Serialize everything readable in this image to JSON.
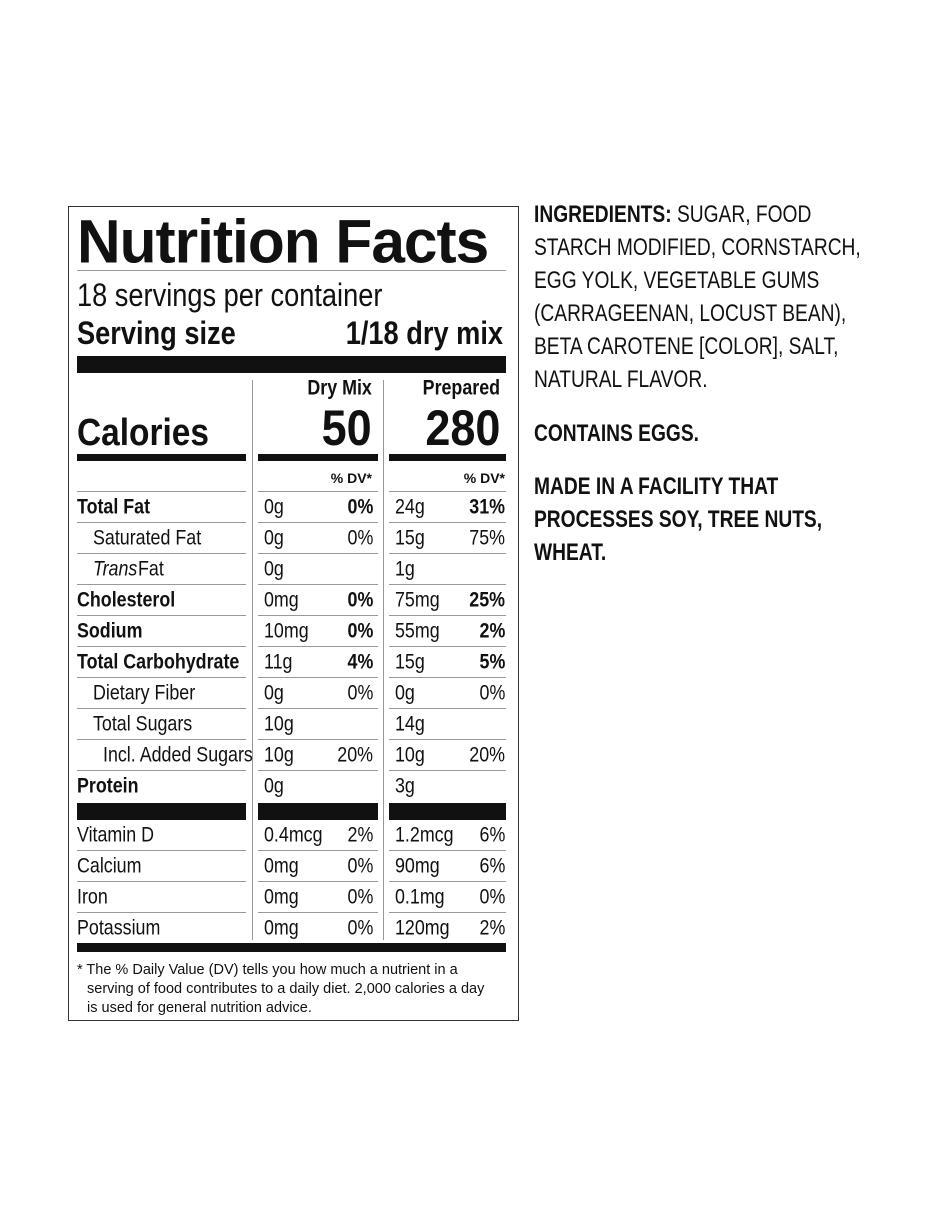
{
  "nutrition_facts": {
    "title": "Nutrition Facts",
    "servings": "18 servings per container",
    "serving_size_label": "Serving size",
    "serving_size_value": "1/18 dry mix",
    "columns": [
      "Dry Mix",
      "Prepared"
    ],
    "calories_label": "Calories",
    "calories": [
      "50",
      "280"
    ],
    "dv_header": [
      "% DV*",
      "% DV*"
    ],
    "nutrients": [
      {
        "name": "Total Fat",
        "level": 0,
        "dry_amount": "0g",
        "dry_dv": "0%",
        "prepared_amount": "24g",
        "prepared_dv": "31%"
      },
      {
        "name": "Saturated Fat",
        "level": 1,
        "dry_amount": "0g",
        "dry_dv": "0%",
        "prepared_amount": "15g",
        "prepared_dv": "75%"
      },
      {
        "name_italic": "Trans",
        "name": "Fat",
        "level": 1,
        "dry_amount": "0g",
        "prepared_amount": "1g"
      },
      {
        "name": "Cholesterol",
        "level": 0,
        "dry_amount": "0mg",
        "dry_dv": "0%",
        "prepared_amount": "75mg",
        "prepared_dv": "25%"
      },
      {
        "name": "Sodium",
        "level": 0,
        "dry_amount": "10mg",
        "dry_dv": "0%",
        "prepared_amount": "55mg",
        "prepared_dv": "2%"
      },
      {
        "name": "Total Carbohydrate",
        "level": 0,
        "dry_amount": "11g",
        "dry_dv": "4%",
        "prepared_amount": "15g",
        "prepared_dv": "5%"
      },
      {
        "name": "Dietary Fiber",
        "level": 1,
        "dry_amount": "0g",
        "dry_dv": "0%",
        "prepared_amount": "0g",
        "prepared_dv": "0%"
      },
      {
        "name": "Total Sugars",
        "level": 1,
        "dry_amount": "10g",
        "prepared_amount": "14g"
      },
      {
        "name": "Incl. Added Sugars",
        "level": 2,
        "dry_amount": "10g",
        "dry_dv": "20%",
        "prepared_amount": "10g",
        "prepared_dv": "20%"
      },
      {
        "name": "Protein",
        "level": 0,
        "dry_amount": "0g",
        "prepared_amount": "3g"
      }
    ],
    "vitamins": [
      {
        "name": "Vitamin D",
        "dry_amount": "0.4mcg",
        "dry_dv": "2%",
        "prepared_amount": "1.2mcg",
        "prepared_dv": "6%"
      },
      {
        "name": "Calcium",
        "dry_amount": "0mg",
        "dry_dv": "0%",
        "prepared_amount": "90mg",
        "prepared_dv": "6%"
      },
      {
        "name": "Iron",
        "dry_amount": "0mg",
        "dry_dv": "0%",
        "prepared_amount": "0.1mg",
        "prepared_dv": "0%"
      },
      {
        "name": "Potassium",
        "dry_amount": "0mg",
        "dry_dv": "0%",
        "prepared_amount": "120mg",
        "prepared_dv": "2%"
      }
    ],
    "footnote": "* The % Daily Value (DV) tells you how much a nutrient in a serving of food contributes to a daily diet. 2,000 calories a day is used for general nutrition advice."
  },
  "ingredients": {
    "label": "INGREDIENTS:",
    "text": "SUGAR, FOOD STARCH MODIFIED, CORNSTARCH, EGG YOLK, VEGETABLE GUMS (CARRAGEENAN, LOCUST BEAN), BETA CAROTENE [COLOR], SALT, NATURAL FLAVOR."
  },
  "contains": "CONTAINS EGGS.",
  "facility": "MADE IN A FACILITY THAT PROCESSES SOY, TREE NUTS, WHEAT."
}
